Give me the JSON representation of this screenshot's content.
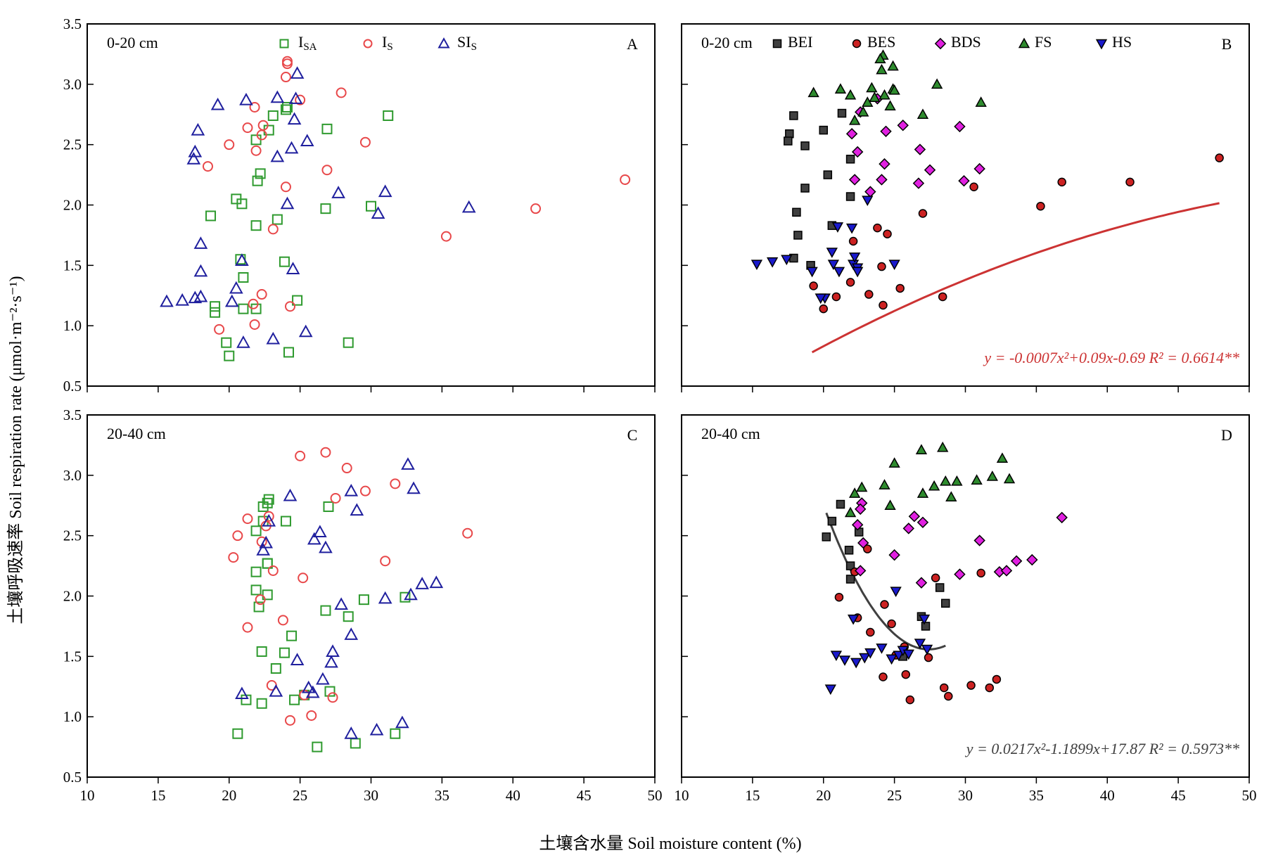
{
  "figure": {
    "ylabel": "土壤呼吸速率 Soil respiration rate (μmol·m⁻²·s⁻¹)",
    "xlabel": "土壤含水量 Soil moisture content (%)",
    "xticks": [
      "10",
      "15",
      "20",
      "25",
      "30",
      "35",
      "40",
      "45",
      "50"
    ],
    "yticks": [
      "0.5",
      "1.0",
      "1.5",
      "2.0",
      "2.5",
      "3.0",
      "3.5"
    ]
  },
  "chart_data": [
    {
      "panel": "A",
      "type": "scatter",
      "layer": "0-20 cm",
      "xlim": [
        10,
        50
      ],
      "ylim": [
        0.5,
        3.5
      ],
      "grid": false,
      "legend": "top",
      "series": [
        {
          "name": "ISA",
          "marker": "square-open",
          "color": "#2e9a2e",
          "x": [
            22.0,
            20.5,
            20.9,
            21.9,
            22.2,
            23.4,
            18.7,
            20.8,
            22.8,
            23.1,
            24.0,
            24.1,
            30.0,
            26.9,
            26.8,
            31.2,
            21.9,
            23.9,
            21.0,
            24.8,
            19.0,
            21.9,
            21.0,
            19.0,
            19.8,
            20.0,
            24.2,
            28.4
          ],
          "y": [
            2.2,
            2.05,
            2.01,
            2.54,
            2.26,
            1.88,
            1.91,
            1.55,
            2.62,
            2.74,
            2.79,
            2.81,
            1.99,
            2.63,
            1.97,
            2.74,
            1.83,
            1.53,
            1.4,
            1.21,
            1.16,
            1.14,
            1.14,
            1.11,
            0.86,
            0.75,
            0.78,
            0.86
          ]
        },
        {
          "name": "IS",
          "marker": "circle-open",
          "color": "#e8484a",
          "x": [
            24.1,
            24.1,
            24.0,
            25.0,
            27.9,
            21.8,
            21.3,
            22.4,
            22.3,
            21.9,
            20.0,
            18.5,
            24.0,
            26.9,
            29.6,
            23.1,
            19.3,
            22.3,
            21.7,
            21.8,
            24.3,
            35.3,
            41.6,
            47.9
          ],
          "y": [
            3.19,
            3.17,
            3.06,
            2.87,
            2.93,
            2.81,
            2.64,
            2.66,
            2.58,
            2.45,
            2.5,
            2.32,
            2.15,
            2.29,
            2.52,
            1.8,
            0.97,
            1.26,
            1.18,
            1.01,
            1.16,
            1.74,
            1.97,
            2.21
          ]
        },
        {
          "name": "SIS",
          "marker": "triangle-open",
          "color": "#1f1f9e",
          "x": [
            19.2,
            21.2,
            23.4,
            24.7,
            24.8,
            17.8,
            17.6,
            17.5,
            24.6,
            25.5,
            24.4,
            23.4,
            27.7,
            24.1,
            31.0,
            30.5,
            36.9,
            18.0,
            18.0,
            20.9,
            20.5,
            24.5,
            15.6,
            16.7,
            17.6,
            18.0,
            20.2,
            23.1,
            25.4,
            21.0
          ],
          "y": [
            2.83,
            2.87,
            2.89,
            2.88,
            3.09,
            2.62,
            2.44,
            2.38,
            2.71,
            2.53,
            2.47,
            2.4,
            2.1,
            2.01,
            2.11,
            1.93,
            1.98,
            1.68,
            1.45,
            1.54,
            1.31,
            1.47,
            1.2,
            1.21,
            1.23,
            1.24,
            1.2,
            0.89,
            0.95,
            0.86
          ]
        }
      ]
    },
    {
      "panel": "B",
      "type": "scatter",
      "layer": "0-20 cm",
      "xlim": [
        10,
        50
      ],
      "ylim": [
        0.5,
        3.5
      ],
      "grid": false,
      "legend": "top",
      "series": [
        {
          "name": "BEI",
          "marker": "square-filled",
          "color": "#404040",
          "x": [
            17.9,
            17.6,
            17.5,
            18.7,
            20.0,
            21.3,
            21.9,
            20.3,
            18.7,
            18.1,
            21.9,
            20.6,
            18.2,
            17.9,
            19.1
          ],
          "y": [
            2.74,
            2.59,
            2.53,
            2.49,
            2.62,
            2.76,
            2.38,
            2.25,
            2.14,
            1.94,
            2.07,
            1.83,
            1.75,
            1.56,
            1.5
          ]
        },
        {
          "name": "BES",
          "marker": "circle-filled",
          "color": "#cc2222",
          "x": [
            22.1,
            23.8,
            24.5,
            27.0,
            24.1,
            19.3,
            20.0,
            20.9,
            21.9,
            23.2,
            24.2,
            25.4,
            28.4,
            30.6,
            35.3,
            36.8,
            41.6,
            47.9
          ],
          "y": [
            1.7,
            1.81,
            1.76,
            1.93,
            1.49,
            1.33,
            1.14,
            1.24,
            1.36,
            1.26,
            1.17,
            1.31,
            1.24,
            2.15,
            1.99,
            2.19,
            2.19,
            2.39
          ]
        },
        {
          "name": "BDS",
          "marker": "diamond-filled",
          "color": "#e020e0",
          "x": [
            22.6,
            22.0,
            22.4,
            23.8,
            24.4,
            25.6,
            29.6,
            26.8,
            27.5,
            22.2,
            24.3,
            24.1,
            23.3,
            26.7,
            29.9,
            31.0
          ],
          "y": [
            2.77,
            2.59,
            2.44,
            2.88,
            2.61,
            2.66,
            2.65,
            2.46,
            2.29,
            2.21,
            2.34,
            2.21,
            2.11,
            2.18,
            2.2,
            2.3
          ]
        },
        {
          "name": "FS",
          "marker": "triangle-filled",
          "color": "#2e8b2e",
          "x": [
            24.2,
            24.0,
            24.9,
            24.1,
            28.0,
            23.4,
            24.9,
            25.0,
            21.2,
            21.9,
            23.1,
            24.3,
            23.6,
            22.8,
            22.2,
            19.3,
            27.0,
            31.1,
            24.7
          ],
          "y": [
            3.24,
            3.21,
            3.15,
            3.12,
            3.0,
            2.97,
            2.96,
            2.95,
            2.96,
            2.91,
            2.85,
            2.91,
            2.89,
            2.77,
            2.7,
            2.93,
            2.75,
            2.85,
            2.82
          ]
        },
        {
          "name": "HS",
          "marker": "triangle-down-filled",
          "color": "#1a1acc",
          "x": [
            15.3,
            16.4,
            17.4,
            19.2,
            20.1,
            20.7,
            20.6,
            21.0,
            21.1,
            22.0,
            22.1,
            22.4,
            22.2,
            22.4,
            23.1,
            25.0,
            19.8
          ],
          "y": [
            1.51,
            1.53,
            1.55,
            1.45,
            1.23,
            1.51,
            1.61,
            1.82,
            1.45,
            1.81,
            1.51,
            1.48,
            1.57,
            1.45,
            2.04,
            1.51,
            1.23
          ]
        }
      ],
      "fit": {
        "equation": "y = -0.0007x²+0.09x-0.69  R² = 0.6614**",
        "color": "#cc3333",
        "a": -0.0007,
        "b": 0.09,
        "c": -0.69,
        "x_range": [
          19.2,
          47.9
        ]
      }
    },
    {
      "panel": "C",
      "type": "scatter",
      "layer": "20-40 cm",
      "xlim": [
        10,
        50
      ],
      "ylim": [
        0.5,
        3.5
      ],
      "grid": false,
      "series": [
        {
          "name": "ISA",
          "marker": "square-open",
          "color": "#2e9a2e",
          "x": [
            22.8,
            22.7,
            22.4,
            22.4,
            22.7,
            21.9,
            22.7,
            21.9,
            22.1,
            22.7,
            21.9,
            24.0,
            29.5,
            27.0,
            26.8,
            28.4,
            32.4,
            24.4,
            22.3,
            23.9,
            23.3,
            25.3,
            24.6,
            21.2,
            22.3,
            20.6,
            26.2,
            28.9,
            31.7,
            27.1
          ],
          "y": [
            2.8,
            2.77,
            2.74,
            2.62,
            2.27,
            2.2,
            2.01,
            2.05,
            1.91,
            2.27,
            2.54,
            2.62,
            1.97,
            2.74,
            1.88,
            1.83,
            1.99,
            1.67,
            1.54,
            1.53,
            1.4,
            1.18,
            1.14,
            1.14,
            1.11,
            0.86,
            0.75,
            0.78,
            0.86,
            1.21
          ]
        },
        {
          "name": "IS",
          "marker": "circle-open",
          "color": "#e8484a",
          "x": [
            25.0,
            26.8,
            28.3,
            27.5,
            29.6,
            31.7,
            21.3,
            20.6,
            20.3,
            22.8,
            22.6,
            22.3,
            23.1,
            25.2,
            22.2,
            23.8,
            21.3,
            23.0,
            25.3,
            24.3,
            25.8,
            27.3,
            31.0,
            36.8
          ],
          "y": [
            3.16,
            3.19,
            3.06,
            2.81,
            2.87,
            2.93,
            2.64,
            2.5,
            2.32,
            2.66,
            2.58,
            2.45,
            2.21,
            2.15,
            1.97,
            1.8,
            1.74,
            1.26,
            1.18,
            0.97,
            1.01,
            1.16,
            2.29,
            2.52
          ]
        },
        {
          "name": "SIS",
          "marker": "triangle-open",
          "color": "#1f1f9e",
          "x": [
            32.6,
            24.3,
            28.6,
            33.0,
            29.0,
            22.8,
            26.4,
            26.0,
            26.8,
            22.4,
            22.6,
            33.6,
            34.6,
            32.8,
            31.0,
            27.9,
            28.6,
            27.3,
            27.2,
            24.8,
            26.6,
            25.6,
            25.9,
            20.9,
            23.3,
            28.6,
            30.4,
            32.2
          ],
          "y": [
            3.09,
            2.83,
            2.87,
            2.89,
            2.71,
            2.62,
            2.53,
            2.47,
            2.4,
            2.38,
            2.44,
            2.1,
            2.11,
            2.01,
            1.98,
            1.93,
            1.68,
            1.54,
            1.45,
            1.47,
            1.31,
            1.24,
            1.2,
            1.19,
            1.21,
            0.86,
            0.89,
            0.95
          ]
        }
      ]
    },
    {
      "panel": "D",
      "type": "scatter",
      "layer": "20-40 cm",
      "xlim": [
        10,
        50
      ],
      "ylim": [
        0.5,
        3.5
      ],
      "grid": false,
      "series": [
        {
          "name": "BEI",
          "marker": "square-filled",
          "color": "#404040",
          "x": [
            21.2,
            20.6,
            20.2,
            22.5,
            21.8,
            21.9,
            21.9,
            28.2,
            28.6,
            26.9,
            27.2,
            25.6
          ],
          "y": [
            2.76,
            2.62,
            2.49,
            2.53,
            2.38,
            2.25,
            2.14,
            2.07,
            1.94,
            1.83,
            1.75,
            1.5
          ]
        },
        {
          "name": "BES",
          "marker": "circle-filled",
          "color": "#cc2222",
          "x": [
            23.1,
            22.2,
            21.1,
            24.3,
            24.8,
            23.3,
            25.7,
            27.9,
            27.4,
            22.4,
            24.2,
            25.8,
            26.1,
            28.5,
            28.8,
            30.4,
            31.7,
            32.2,
            31.1,
            25.1
          ],
          "y": [
            2.39,
            2.2,
            1.99,
            1.93,
            1.77,
            1.7,
            1.58,
            2.15,
            1.49,
            1.82,
            1.33,
            1.35,
            1.14,
            1.24,
            1.17,
            1.26,
            1.24,
            1.31,
            2.19,
            1.51
          ]
        },
        {
          "name": "BDS",
          "marker": "diamond-filled",
          "color": "#e020e0",
          "x": [
            22.7,
            22.6,
            22.4,
            22.8,
            26.4,
            26.0,
            27.0,
            36.8,
            31.0,
            25.0,
            26.9,
            29.6,
            32.4,
            32.9,
            33.6,
            34.7,
            22.6
          ],
          "y": [
            2.77,
            2.72,
            2.59,
            2.44,
            2.66,
            2.56,
            2.61,
            2.65,
            2.46,
            2.34,
            2.11,
            2.18,
            2.2,
            2.21,
            2.29,
            2.3,
            2.21
          ]
        },
        {
          "name": "FS",
          "marker": "triangle-filled",
          "color": "#2e8b2e",
          "x": [
            26.9,
            28.4,
            32.6,
            25.0,
            24.3,
            22.7,
            22.2,
            21.9,
            27.0,
            27.8,
            28.6,
            29.4,
            30.8,
            31.9,
            33.1,
            29.0,
            24.7
          ],
          "y": [
            3.21,
            3.23,
            3.14,
            3.1,
            2.92,
            2.9,
            2.85,
            2.69,
            2.85,
            2.91,
            2.95,
            2.95,
            2.96,
            2.99,
            2.97,
            2.82,
            2.75
          ]
        },
        {
          "name": "HS",
          "marker": "triangle-down-filled",
          "color": "#1a1acc",
          "x": [
            20.5,
            20.9,
            21.5,
            22.3,
            22.9,
            23.3,
            24.1,
            24.8,
            25.3,
            25.6,
            26.0,
            26.8,
            27.3,
            25.1,
            27.1,
            22.1
          ],
          "y": [
            1.23,
            1.51,
            1.47,
            1.45,
            1.49,
            1.53,
            1.57,
            1.48,
            1.51,
            1.55,
            1.52,
            1.61,
            1.56,
            2.04,
            1.81,
            1.81
          ]
        }
      ],
      "fit": {
        "equation": "y = 0.0217x²-1.1899x+17.87  R² = 0.5973**",
        "color": "#404040",
        "a": 0.0217,
        "b": -1.1899,
        "c": 17.87,
        "x_range": [
          20.2,
          28.6
        ]
      }
    }
  ]
}
